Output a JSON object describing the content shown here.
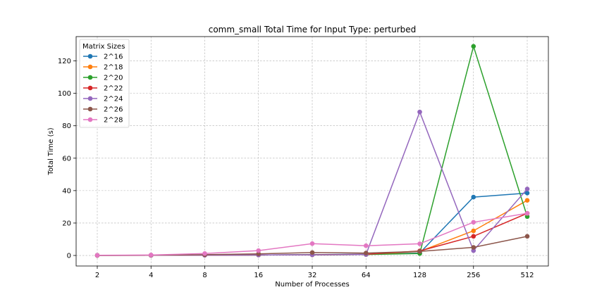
{
  "chart_data": {
    "type": "line",
    "title": "comm_small Total Time for Input Type: perturbed",
    "xlabel": "Number of Processes",
    "ylabel": "Total Time (s)",
    "categories": [
      "2",
      "4",
      "8",
      "16",
      "32",
      "64",
      "128",
      "256",
      "512"
    ],
    "ylim": [
      -6.5,
      135
    ],
    "yticks": [
      0,
      20,
      40,
      60,
      80,
      100,
      120
    ],
    "grid": true,
    "legend": {
      "title": "Matrix Sizes",
      "placement": "top-left"
    },
    "series": [
      {
        "name": "2^16",
        "color": "#1f77b4",
        "values": [
          0.05,
          0.1,
          0.2,
          0.3,
          0.5,
          0.8,
          1.5,
          36.0,
          38.5
        ]
      },
      {
        "name": "2^18",
        "color": "#ff7f0e",
        "values": [
          0.05,
          0.1,
          0.2,
          0.3,
          0.4,
          0.6,
          2.5,
          15.2,
          34.0
        ]
      },
      {
        "name": "2^20",
        "color": "#2ca02c",
        "values": [
          0.05,
          0.1,
          0.2,
          0.3,
          0.4,
          0.6,
          1.2,
          129.0,
          24.0
        ]
      },
      {
        "name": "2^22",
        "color": "#d62728",
        "values": [
          0.05,
          0.1,
          0.2,
          0.3,
          0.4,
          0.7,
          2.8,
          11.8,
          26.0
        ]
      },
      {
        "name": "2^24",
        "color": "#9467bd",
        "values": [
          0.05,
          0.1,
          0.2,
          0.3,
          0.4,
          0.6,
          88.5,
          3.0,
          41.0
        ]
      },
      {
        "name": "2^26",
        "color": "#8c564b",
        "values": [
          0.05,
          0.2,
          0.5,
          1.0,
          1.8,
          1.5,
          2.5,
          5.0,
          11.8
        ]
      },
      {
        "name": "2^28",
        "color": "#e377c2",
        "values": [
          0.1,
          0.3,
          1.2,
          3.0,
          7.3,
          6.0,
          7.2,
          20.5,
          26.0
        ]
      }
    ]
  }
}
